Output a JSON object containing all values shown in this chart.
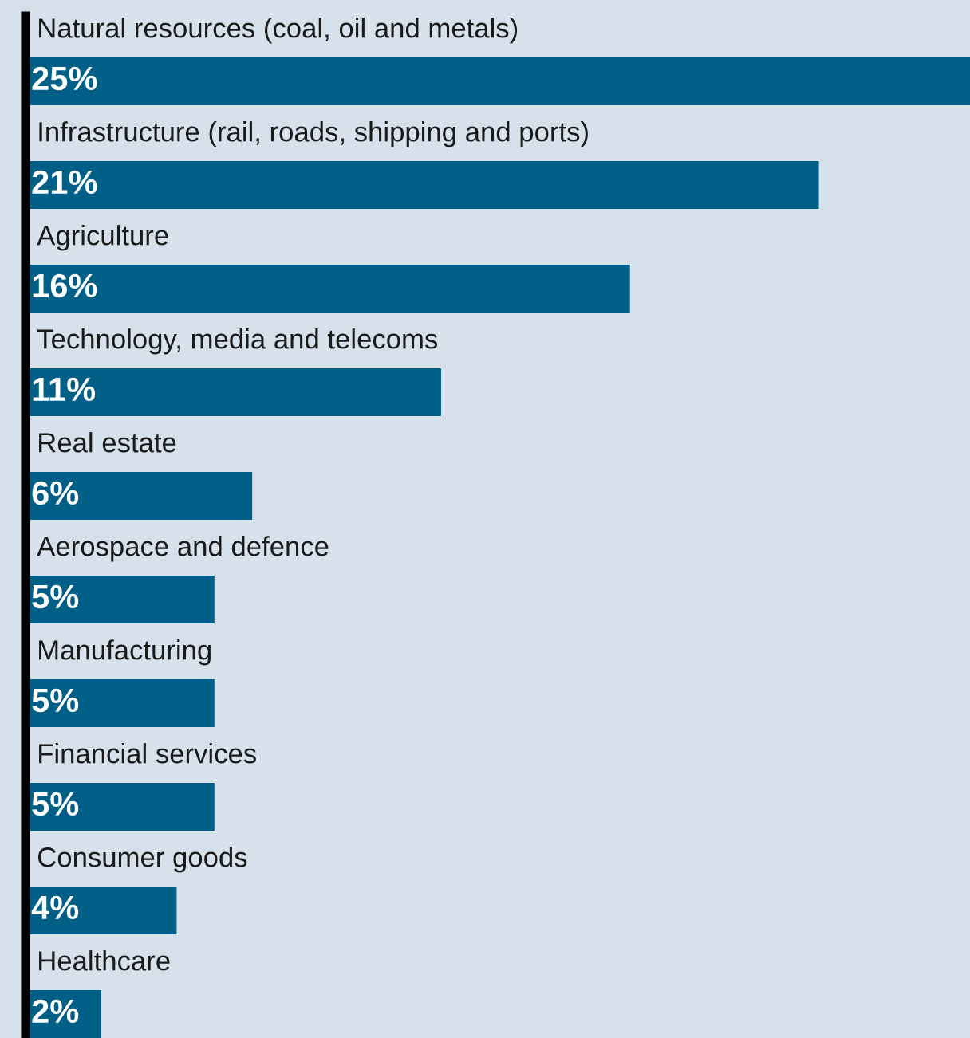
{
  "chart_data": {
    "type": "bar",
    "orientation": "horizontal",
    "categories": [
      "Natural resources (coal, oil and metals)",
      "Infrastructure (rail, roads, shipping and ports)",
      "Agriculture",
      "Technology, media and telecoms",
      "Real estate",
      "Aerospace and defence",
      "Manufacturing",
      "Financial services",
      "Consumer goods",
      "Healthcare"
    ],
    "values": [
      25,
      21,
      16,
      11,
      6,
      5,
      5,
      5,
      4,
      2
    ],
    "value_labels": [
      "25%",
      "21%",
      "16%",
      "11%",
      "6%",
      "5%",
      "5%",
      "5%",
      "4%",
      "2%"
    ],
    "color": "#005f87"
  }
}
